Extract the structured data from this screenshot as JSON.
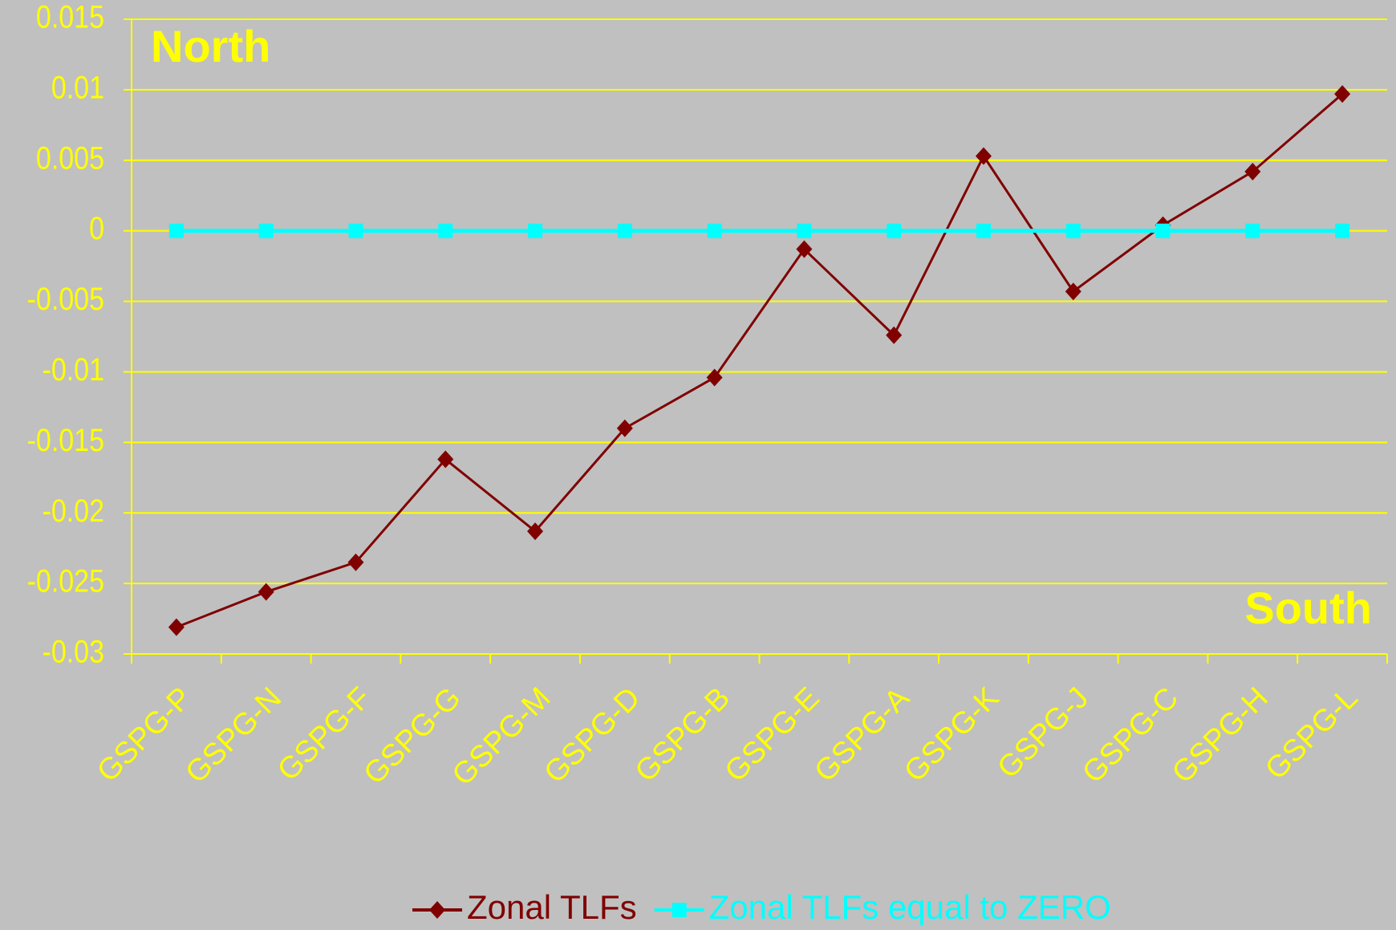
{
  "chart_data": {
    "type": "line",
    "annotations": [
      "North",
      "South"
    ],
    "categories": [
      "GSPG-P",
      "GSPG-N",
      "GSPG-F",
      "GSPG-G",
      "GSPG-M",
      "GSPG-D",
      "GSPG-B",
      "GSPG-E",
      "GSPG-A",
      "GSPG-K",
      "GSPG-J",
      "GSPG-C",
      "GSPG-H",
      "GSPG-L"
    ],
    "series": [
      {
        "name": "Zonal TLFs",
        "color": "#800000",
        "marker": "diamond",
        "values": [
          -0.0281,
          -0.0256,
          -0.0235,
          -0.0162,
          -0.0213,
          -0.014,
          -0.0104,
          -0.0013,
          -0.0074,
          0.0053,
          -0.0043,
          0.0004,
          0.0042,
          0.0097
        ]
      },
      {
        "name": "Zonal TLFs equal to ZERO",
        "color": "#00ffff",
        "marker": "square",
        "values": [
          0,
          0,
          0,
          0,
          0,
          0,
          0,
          0,
          0,
          0,
          0,
          0,
          0,
          0
        ]
      }
    ],
    "ylim": [
      -0.03,
      0.015
    ],
    "yticks": [
      -0.03,
      -0.025,
      -0.02,
      -0.015,
      -0.01,
      -0.005,
      0,
      0.005,
      0.01,
      0.015
    ],
    "grid": true,
    "grid_color": "#ffff00",
    "text_color": "#ffff00"
  }
}
